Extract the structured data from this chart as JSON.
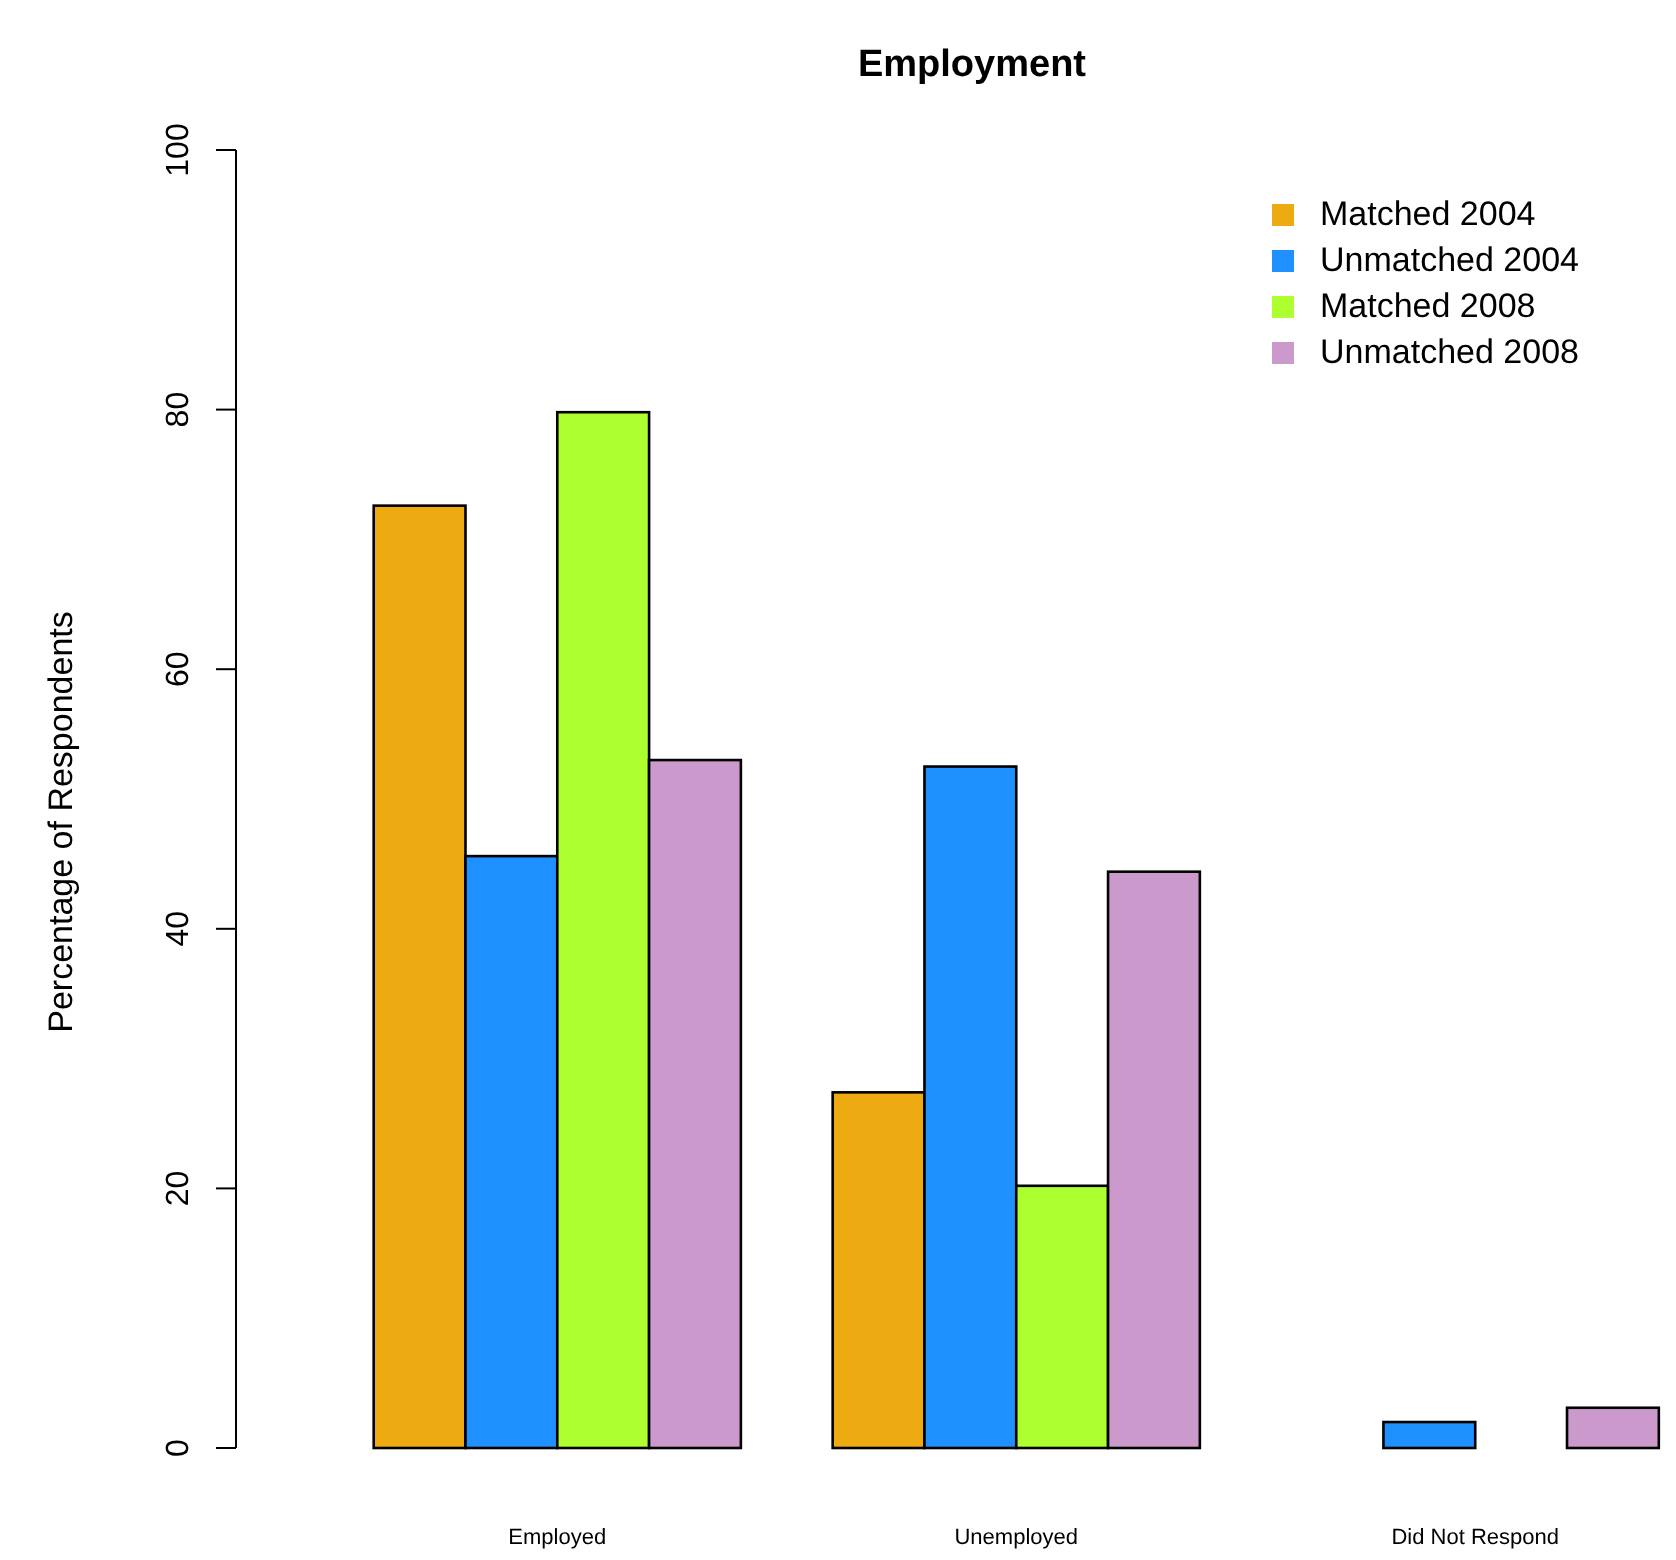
{
  "chart_data": {
    "type": "bar",
    "title": "Employment",
    "ylabel": "Percentage of Respondents",
    "categories": [
      "Employed",
      "Unemployed",
      "Did Not Respond"
    ],
    "series": [
      {
        "name": "Matched 2004",
        "color": "#eeaa11",
        "values": [
          72.6,
          27.4,
          0
        ]
      },
      {
        "name": "Unmatched 2004",
        "color": "#1e90ff",
        "values": [
          45.6,
          52.5,
          2.0
        ]
      },
      {
        "name": "Matched 2008",
        "color": "#adff2f",
        "values": [
          79.8,
          20.2,
          0
        ]
      },
      {
        "name": "Unmatched 2008",
        "color": "#cc99cc",
        "values": [
          53.0,
          44.4,
          3.1
        ]
      }
    ],
    "ylim": [
      0,
      100
    ],
    "yticks": [
      0,
      20,
      40,
      60,
      80,
      100
    ],
    "legend": "top right"
  }
}
